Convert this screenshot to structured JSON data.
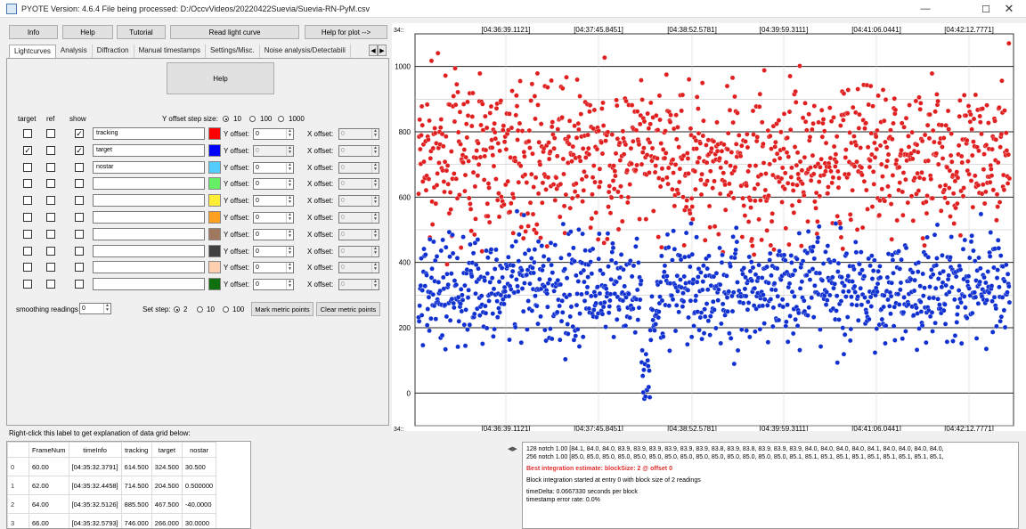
{
  "window": {
    "title": "PYOTE Version: 4.6.4  File being processed: D:/OccvVideos/20220422Suevia/Suevia-RN-PyM.csv"
  },
  "topbar": {
    "info": "Info",
    "help": "Help",
    "tutorial": "Tutorial",
    "read": "Read light curve",
    "help_plot": "Help for plot -->"
  },
  "tabs": [
    "Lightcurves",
    "Analysis",
    "Diffraction",
    "Manual timestamps",
    "Settings/Misc.",
    "Noise analysis/Detectabili"
  ],
  "panel": {
    "help_button": "Help",
    "col_target": "target",
    "col_ref": "ref",
    "col_show": "show",
    "yoffset_step_label": "Y offset step size:",
    "yoffset_steps": [
      "10",
      "100",
      "1000"
    ],
    "yoffset_label": "Y offset:",
    "xoffset_label": "X offset:",
    "rows": [
      {
        "name": "tracking",
        "color": "#ff0000",
        "target": false,
        "show": true,
        "y": "0",
        "x": "0"
      },
      {
        "name": "target",
        "color": "#0000ff",
        "target": true,
        "show": true,
        "y": "0",
        "x": "0"
      },
      {
        "name": "nostar",
        "color": "#55ccff",
        "target": false,
        "show": false,
        "y": "0",
        "x": "0"
      },
      {
        "name": "",
        "color": "#66ee66",
        "target": false,
        "show": false,
        "y": "0",
        "x": "0"
      },
      {
        "name": "",
        "color": "#ffee33",
        "target": false,
        "show": false,
        "y": "0",
        "x": "0"
      },
      {
        "name": "",
        "color": "#ffa020",
        "target": false,
        "show": false,
        "y": "0",
        "x": "0"
      },
      {
        "name": "",
        "color": "#a07860",
        "target": false,
        "show": false,
        "y": "0",
        "x": "0"
      },
      {
        "name": "",
        "color": "#404040",
        "target": false,
        "show": false,
        "y": "0",
        "x": "0"
      },
      {
        "name": "",
        "color": "#ffd0b0",
        "target": false,
        "show": false,
        "y": "0",
        "x": "0"
      },
      {
        "name": "",
        "color": "#107010",
        "target": false,
        "show": false,
        "y": "0",
        "x": "0"
      }
    ],
    "smoothing_label": "smoothing readings",
    "smoothing_value": "0",
    "set_step_label": "Set step:",
    "set_steps": [
      "2",
      "10",
      "100"
    ],
    "mark_button": "Mark metric points",
    "clear_button": "Clear metric points"
  },
  "chart_data": {
    "type": "scatter",
    "time_ticks": [
      "[04:36:39.1121]",
      "[04:37:45.8451]",
      "[04:38:52.5781]",
      "[04:39:59.3111]",
      "[04:41:06.0441]",
      "[04:42:12.7771]"
    ],
    "y_ticks": [
      0,
      200,
      400,
      600,
      800,
      1000
    ],
    "ylim": [
      -100,
      1100
    ],
    "corner_labels": [
      "34::",
      "34::"
    ],
    "series": [
      {
        "color": "#e02020",
        "mean": 720,
        "spread": 110
      },
      {
        "color": "#1030d0",
        "mean": 320,
        "spread": 85
      }
    ]
  },
  "grid": {
    "label": "Right-click this label to get explanation of data grid below:",
    "headers": [
      "",
      "FrameNum",
      "timeInfo",
      "tracking",
      "target",
      "nostar"
    ],
    "rows": [
      [
        "0",
        "60.00",
        "[04:35:32.3791]",
        "614.500",
        "324.500",
        "30.500"
      ],
      [
        "1",
        "62.00",
        "[04:35:32.4458]",
        "714.500",
        "204.500",
        "0.500000"
      ],
      [
        "2",
        "64.00",
        "[04:35:32.5126]",
        "885.500",
        "467.500",
        "-40.0000"
      ],
      [
        "3",
        "66.00",
        "[04:35:32.5793]",
        "746.000",
        "266.000",
        "30.0000"
      ]
    ]
  },
  "log": {
    "line1": "128 notch 1.00 [84.1, 84.0, 84.0, 83.9, 83.9, 83.9, 83.9, 83.9, 83.9, 83.8, 83.9, 83.8, 83.9, 83.9, 83.9, 84.0, 84.0, 84.0, 84.0, 84.1, 84.0, 84.0, 84.0, 84.0,",
    "line2": "256 notch 1.00 [85.0, 85.0, 85.0, 85.0, 85.0, 85.0, 85.0, 85.0, 85.0, 85.0, 85.0, 85.0, 85.0, 85.0, 85.1, 85.1, 85.1, 85.1, 85.1, 85.1, 85.1, 85.1, 85.1, 85.1,",
    "best": "Best integration estimate: blockSize: 2 @ offset 0",
    "block": "Block integration started at entry 0 with block size of 2 readings",
    "delta": "timeDelta: 0.0667330 seconds per block",
    "error": "timestamp error rate: 0.0%"
  }
}
